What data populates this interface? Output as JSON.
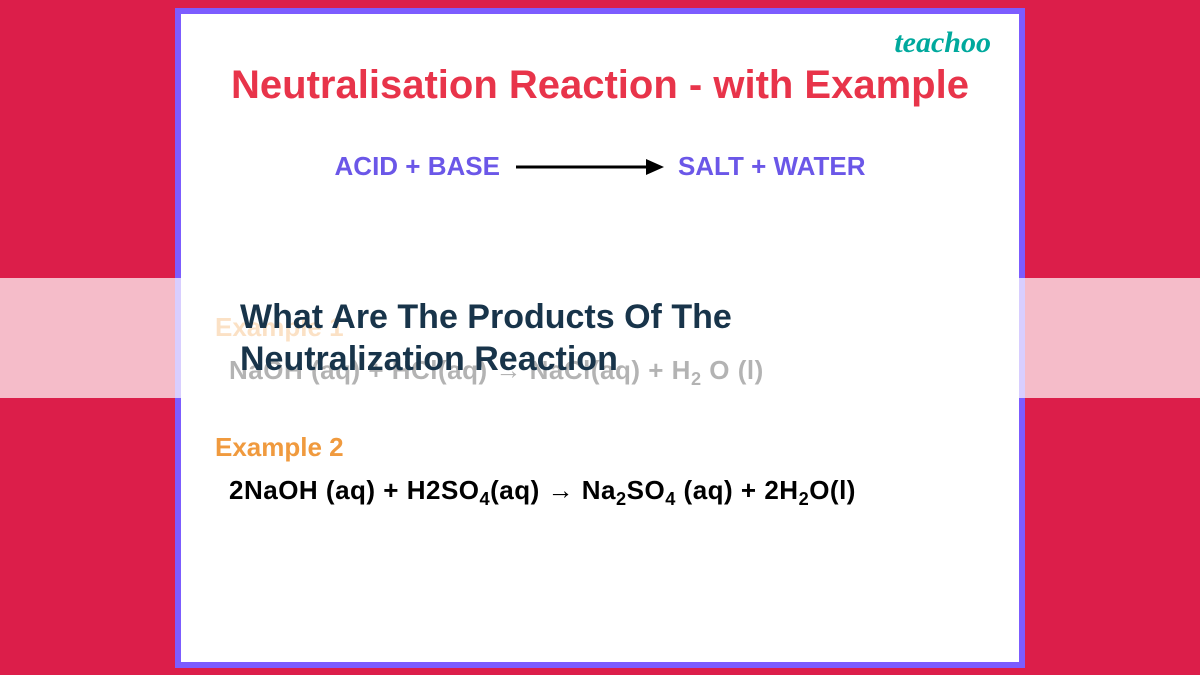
{
  "logo": "teachoo",
  "title": "Neutralisation Reaction - with Example",
  "general_equation": {
    "left": "ACID + BASE",
    "right": "SALT + WATER",
    "color": "#6b57e8",
    "arrow_color": "#000000"
  },
  "overlay": {
    "text": "What Are The Products Of The Neutralization Reaction",
    "text_color": "#18344a",
    "band_bg": "rgba(255,255,255,0.70)"
  },
  "examples": [
    {
      "label": "Example 1",
      "equation_html": "NaOH (aq) + HCl(aq) → NaCl(aq) + H<sub>2</sub> O (l)"
    },
    {
      "label": "Example 2",
      "equation_html": "2NaOH (aq) + H2SO<sub>4</sub>(aq) → Na<sub>2</sub>SO<sub>4</sub> (aq) + 2H<sub>2</sub>O(l)"
    }
  ],
  "colors": {
    "page_bg": "#dc1e4a",
    "card_bg": "#ffffff",
    "card_border": "#7c5cff",
    "title": "#e8344a",
    "example_label": "#f09a3e",
    "equation_text": "#000000",
    "logo": "#00a99d"
  }
}
